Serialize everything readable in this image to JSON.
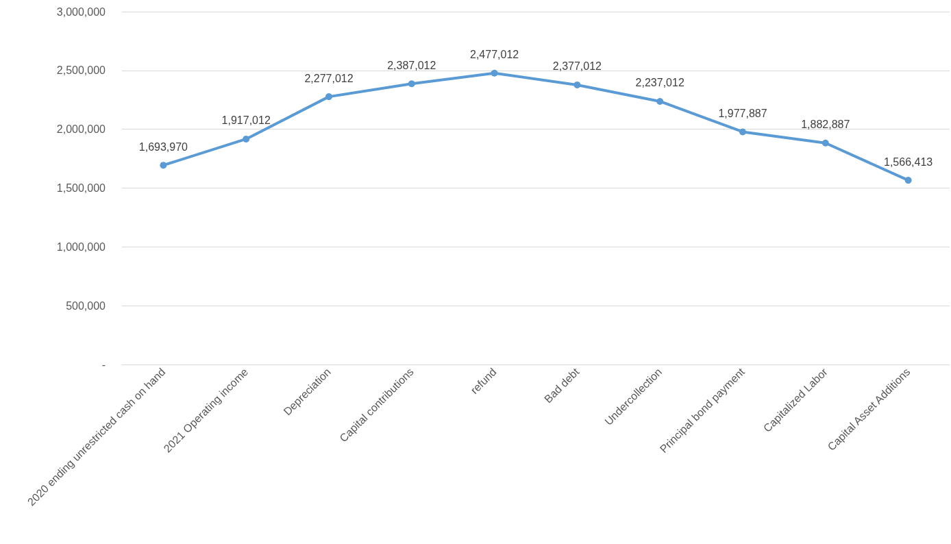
{
  "chart_data": {
    "type": "line",
    "categories": [
      "2020 ending unrestricted cash on hand",
      "2021 Operating income",
      "Depreciation",
      "Capital contributions",
      "refund",
      "Bad debt",
      "Undercollection",
      "Principal bond payment",
      "Capitalized Labor",
      "Capital Asset Additions"
    ],
    "series": [
      {
        "color": "#5b9bd5",
        "values": [
          1693970,
          1917012,
          2277012,
          2387012,
          2477012,
          2377012,
          2237012,
          1977887,
          1882887,
          1566413
        ],
        "value_labels": [
          "1,693,970",
          "1,917,012",
          "2,277,012",
          "2,387,012",
          "2,477,012",
          "2,377,012",
          "2,237,012",
          "1,977,887",
          "1,882,887",
          "1,566,413"
        ]
      }
    ],
    "ylim": [
      0,
      3000000
    ],
    "yticks": [
      {
        "value": 0,
        "label": "-"
      },
      {
        "value": 500000,
        "label": "500,000"
      },
      {
        "value": 1000000,
        "label": "1,000,000"
      },
      {
        "value": 1500000,
        "label": "1,500,000"
      },
      {
        "value": 2000000,
        "label": "2,000,000"
      },
      {
        "value": 2500000,
        "label": "2,500,000"
      },
      {
        "value": 3000000,
        "label": "3,000,000"
      }
    ],
    "grid": "y",
    "marker": "circle",
    "line_style": "solid"
  }
}
